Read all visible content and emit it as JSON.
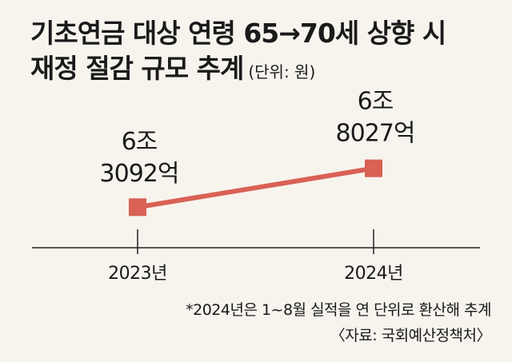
{
  "title_line1": "기초연금 대상 연령 65→70세 상향 시",
  "title_line2": "재정 절감 규모 추계",
  "unit": "(단위: 원)",
  "chart_data": {
    "type": "line",
    "categories": [
      "2023년",
      "2024년"
    ],
    "series": [
      {
        "values": [
          63092,
          68027
        ],
        "labels": [
          [
            "6조",
            "3092억"
          ],
          [
            "6조",
            "8027억"
          ]
        ]
      }
    ],
    "ylim": [
      62000,
      68600
    ],
    "color": "#d96155",
    "axis_color": "#222222"
  },
  "footnote_line1": "*2024년은 1~8월 실적을 연 단위로 환산해 추계",
  "footnote_line2": "〈자료: 국회예산정책처〉"
}
